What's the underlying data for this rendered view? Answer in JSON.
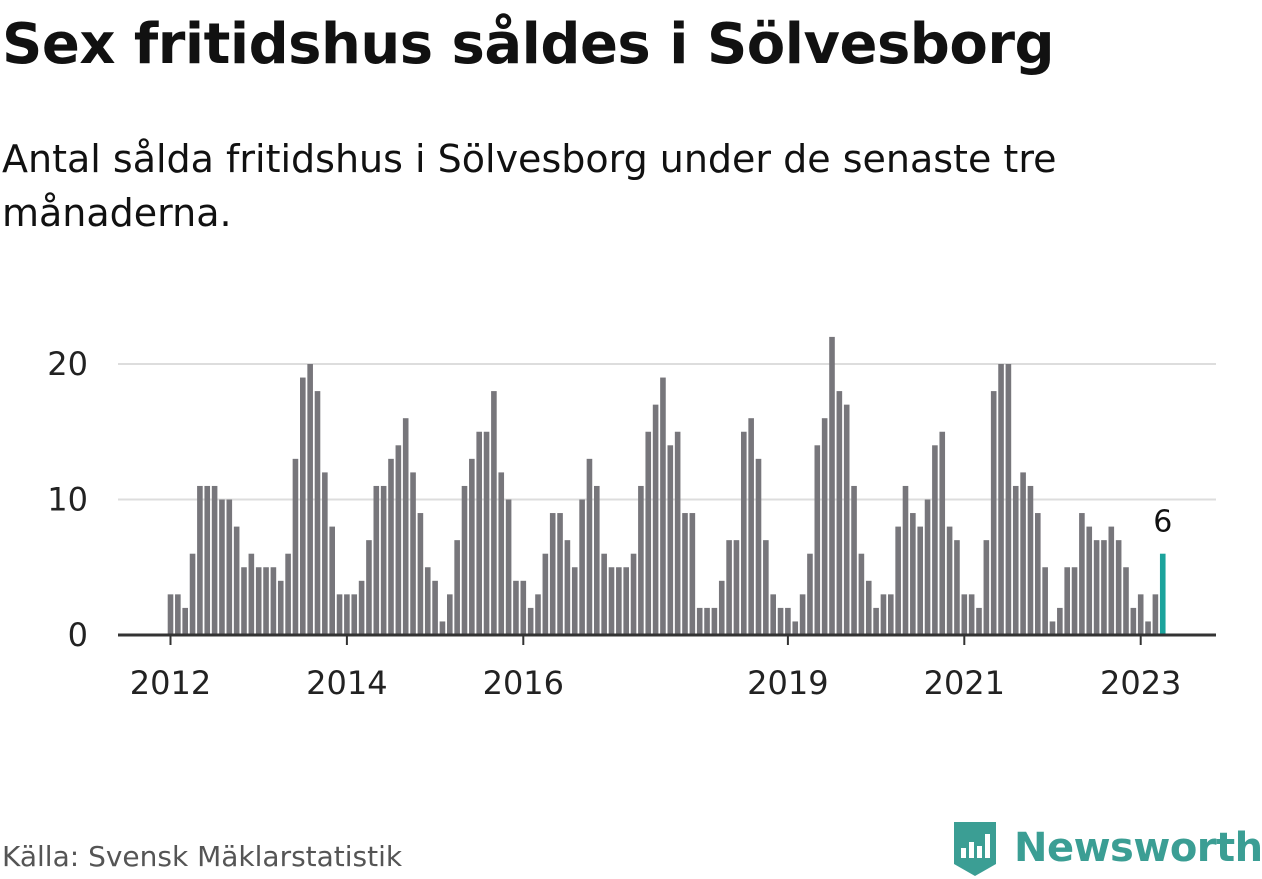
{
  "title": "Sex fritidshus såldes i Sölvesborg",
  "subtitle": "Antal sålda fritidshus i Sölvesborg under de senaste tre månaderna.",
  "source": "Källa: Svensk Mäklarstatistik",
  "brand": "Newsworthy",
  "colors": {
    "bar": "#77767b",
    "highlight": "#1ba39c",
    "grid": "#dddddd",
    "axis": "#333333",
    "brand": "#3b9e94"
  },
  "chart_data": {
    "type": "bar",
    "x_start": "2012-01",
    "values": [
      3,
      3,
      2,
      6,
      11,
      11,
      11,
      10,
      10,
      8,
      5,
      6,
      5,
      5,
      5,
      4,
      6,
      13,
      19,
      20,
      18,
      12,
      8,
      3,
      3,
      3,
      4,
      7,
      11,
      11,
      13,
      14,
      16,
      12,
      9,
      5,
      4,
      1,
      3,
      7,
      11,
      13,
      15,
      15,
      18,
      12,
      10,
      4,
      4,
      2,
      3,
      6,
      9,
      9,
      7,
      5,
      10,
      13,
      11,
      6,
      5,
      5,
      5,
      6,
      11,
      15,
      17,
      19,
      14,
      15,
      9,
      9,
      2,
      2,
      2,
      4,
      7,
      7,
      15,
      16,
      13,
      7,
      3,
      2,
      2,
      1,
      3,
      6,
      14,
      16,
      22,
      18,
      17,
      11,
      6,
      4,
      2,
      3,
      3,
      8,
      11,
      9,
      8,
      10,
      14,
      15,
      8,
      7,
      3,
      3,
      2,
      7,
      18,
      20,
      20,
      11,
      12,
      11,
      9,
      5,
      1,
      2,
      5,
      5,
      9,
      8,
      7,
      7,
      8,
      7,
      5,
      2,
      3,
      1,
      3,
      6
    ],
    "highlight_value_label": "6",
    "x_tick_labels": [
      "2012",
      "2014",
      "2016",
      "2019",
      "2021",
      "2023"
    ],
    "y_tick_labels": [
      "0",
      "10",
      "20"
    ],
    "ylim": [
      0,
      22
    ],
    "grid": true
  }
}
